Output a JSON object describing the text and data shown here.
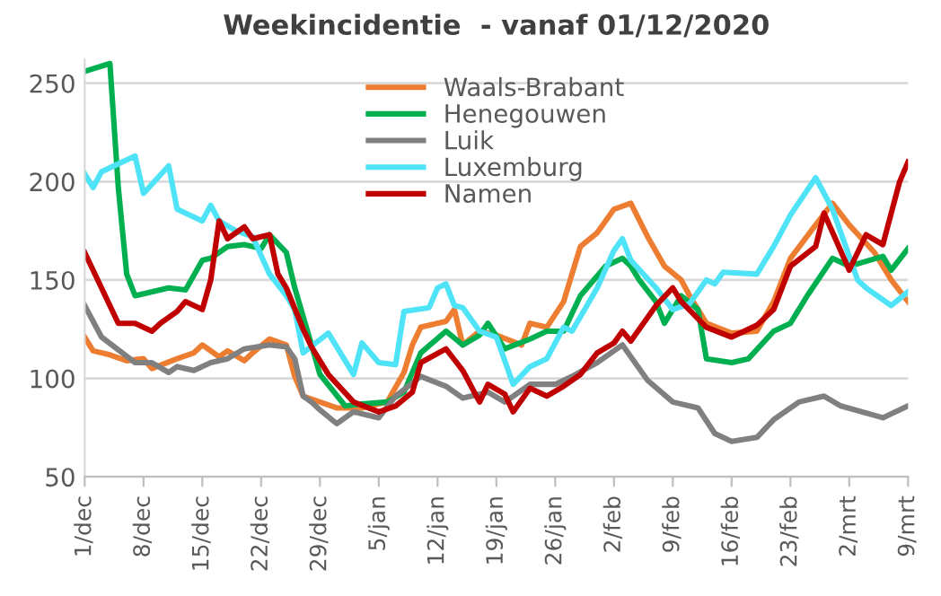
{
  "chart_data": {
    "type": "line",
    "title": "Weekincidentie  - vanaf 01/12/2020",
    "xlim": [
      "2020-12-01",
      "2021-03-09"
    ],
    "ylim": [
      50,
      262
    ],
    "yticks": [
      50,
      100,
      150,
      200,
      250
    ],
    "xticks": [
      {
        "value": "2020-12-01",
        "label": "1/dec"
      },
      {
        "value": "2020-12-08",
        "label": "8/dec"
      },
      {
        "value": "2020-12-15",
        "label": "15/dec"
      },
      {
        "value": "2020-12-22",
        "label": "22/dec"
      },
      {
        "value": "2020-12-29",
        "label": "29/dec"
      },
      {
        "value": "2021-01-05",
        "label": "5/jan"
      },
      {
        "value": "2021-01-12",
        "label": "12/jan"
      },
      {
        "value": "2021-01-19",
        "label": "19/jan"
      },
      {
        "value": "2021-01-26",
        "label": "26/jan"
      },
      {
        "value": "2021-02-02",
        "label": "2/feb"
      },
      {
        "value": "2021-02-09",
        "label": "9/feb"
      },
      {
        "value": "2021-02-16",
        "label": "16/feb"
      },
      {
        "value": "2021-02-23",
        "label": "23/feb"
      },
      {
        "value": "2021-03-02",
        "label": "2/mrt"
      },
      {
        "value": "2021-03-09",
        "label": "9/mrt"
      }
    ],
    "grid": "y",
    "legend": "top",
    "marker": "none",
    "line_style": "solid",
    "series": [
      {
        "name": "Waals-Brabant",
        "color": "#ed7d31",
        "x": [
          "2020-12-01",
          "2020-12-02",
          "2020-12-04",
          "2020-12-06",
          "2020-12-08",
          "2020-12-09",
          "2020-12-12",
          "2020-12-14",
          "2020-12-15",
          "2020-12-17",
          "2020-12-18",
          "2020-12-20",
          "2020-12-21",
          "2020-12-23",
          "2020-12-25",
          "2020-12-26",
          "2020-12-27",
          "2020-12-29",
          "2020-12-31",
          "2021-01-03",
          "2021-01-06",
          "2021-01-08",
          "2021-01-09",
          "2021-01-10",
          "2021-01-13",
          "2021-01-14",
          "2021-01-15",
          "2021-01-17",
          "2021-01-19",
          "2021-01-22",
          "2021-01-23",
          "2021-01-25",
          "2021-01-27",
          "2021-01-29",
          "2021-01-31",
          "2021-02-02",
          "2021-02-04",
          "2021-02-06",
          "2021-02-08",
          "2021-02-10",
          "2021-02-11",
          "2021-02-13",
          "2021-02-16",
          "2021-02-19",
          "2021-02-21",
          "2021-02-23",
          "2021-02-26",
          "2021-02-28",
          "2021-03-02",
          "2021-03-05",
          "2021-03-07",
          "2021-03-09"
        ],
        "values": [
          121,
          114,
          112,
          109,
          110,
          105,
          110,
          113,
          117,
          111,
          114,
          109,
          113,
          120,
          117,
          101,
          91,
          88,
          85,
          85,
          88,
          103,
          117,
          126,
          129,
          135,
          117,
          124,
          122,
          117,
          128,
          126,
          139,
          167,
          174,
          186,
          189,
          172,
          157,
          150,
          142,
          128,
          123,
          124,
          139,
          161,
          178,
          189,
          178,
          164,
          150,
          139
        ]
      },
      {
        "name": "Henegouwen",
        "color": "#00b050",
        "x": [
          "2020-12-01",
          "2020-12-04",
          "2020-12-05",
          "2020-12-06",
          "2020-12-07",
          "2020-12-11",
          "2020-12-13",
          "2020-12-15",
          "2020-12-16",
          "2020-12-18",
          "2020-12-20",
          "2020-12-22",
          "2020-12-23",
          "2020-12-25",
          "2020-12-26",
          "2020-12-28",
          "2020-12-29",
          "2021-01-01",
          "2021-01-03",
          "2021-01-06",
          "2021-01-08",
          "2021-01-10",
          "2021-01-13",
          "2021-01-15",
          "2021-01-17",
          "2021-01-18",
          "2021-01-20",
          "2021-01-23",
          "2021-01-25",
          "2021-01-27",
          "2021-01-29",
          "2021-02-01",
          "2021-02-03",
          "2021-02-04",
          "2021-02-05",
          "2021-02-07",
          "2021-02-08",
          "2021-02-10",
          "2021-02-12",
          "2021-02-13",
          "2021-02-16",
          "2021-02-18",
          "2021-02-21",
          "2021-02-23",
          "2021-02-25",
          "2021-02-28",
          "2021-03-02",
          "2021-03-06",
          "2021-03-07",
          "2021-03-09"
        ],
        "values": [
          256,
          260,
          197,
          153,
          142,
          146,
          145,
          160,
          161,
          167,
          168,
          166,
          173,
          164,
          146,
          117,
          102,
          86,
          87,
          88,
          93,
          113,
          124,
          117,
          122,
          128,
          115,
          120,
          124,
          124,
          142,
          157,
          161,
          157,
          150,
          139,
          128,
          142,
          135,
          110,
          108,
          110,
          124,
          128,
          142,
          161,
          157,
          162,
          155,
          166
        ]
      },
      {
        "name": "Luik",
        "color": "#808080",
        "x": [
          "2020-12-01",
          "2020-12-03",
          "2020-12-07",
          "2020-12-09",
          "2020-12-11",
          "2020-12-12",
          "2020-12-14",
          "2020-12-16",
          "2020-12-18",
          "2020-12-20",
          "2020-12-23",
          "2020-12-25",
          "2020-12-26",
          "2020-12-27",
          "2020-12-28",
          "2020-12-29",
          "2020-12-31",
          "2021-01-02",
          "2021-01-05",
          "2021-01-07",
          "2021-01-10",
          "2021-01-13",
          "2021-01-15",
          "2021-01-18",
          "2021-01-20",
          "2021-01-23",
          "2021-01-26",
          "2021-01-28",
          "2021-01-31",
          "2021-02-03",
          "2021-02-06",
          "2021-02-09",
          "2021-02-12",
          "2021-02-14",
          "2021-02-16",
          "2021-02-19",
          "2021-02-21",
          "2021-02-24",
          "2021-02-27",
          "2021-03-01",
          "2021-03-06",
          "2021-03-07",
          "2021-03-09"
        ],
        "values": [
          137,
          121,
          108,
          108,
          103,
          106,
          104,
          108,
          110,
          115,
          117,
          116,
          110,
          91,
          88,
          84,
          77,
          83,
          80,
          91,
          101,
          96,
          90,
          93,
          88,
          97,
          97,
          101,
          108,
          117,
          99,
          88,
          85,
          72,
          68,
          70,
          79,
          88,
          91,
          86,
          80,
          82,
          86
        ]
      },
      {
        "name": "Luxemburg",
        "color": "#4fe3f7",
        "x": [
          "2020-12-01",
          "2020-12-02",
          "2020-12-03",
          "2020-12-07",
          "2020-12-08",
          "2020-12-11",
          "2020-12-12",
          "2020-12-15",
          "2020-12-16",
          "2020-12-17",
          "2020-12-19",
          "2020-12-21",
          "2020-12-23",
          "2020-12-25",
          "2020-12-26",
          "2020-12-27",
          "2020-12-30",
          "2021-01-02",
          "2021-01-03",
          "2021-01-05",
          "2021-01-07",
          "2021-01-08",
          "2021-01-11",
          "2021-01-12",
          "2021-01-13",
          "2021-01-14",
          "2021-01-15",
          "2021-01-17",
          "2021-01-19",
          "2021-01-21",
          "2021-01-23",
          "2021-01-25",
          "2021-01-27",
          "2021-01-28",
          "2021-01-31",
          "2021-02-02",
          "2021-02-03",
          "2021-02-04",
          "2021-02-07",
          "2021-02-09",
          "2021-02-11",
          "2021-02-13",
          "2021-02-14",
          "2021-02-15",
          "2021-02-19",
          "2021-02-21",
          "2021-02-23",
          "2021-02-26",
          "2021-02-28",
          "2021-03-03",
          "2021-03-04",
          "2021-03-07",
          "2021-03-09"
        ],
        "values": [
          204,
          197,
          205,
          213,
          194,
          208,
          186,
          180,
          188,
          180,
          175,
          172,
          153,
          142,
          135,
          113,
          123,
          102,
          118,
          108,
          107,
          134,
          136,
          146,
          148,
          137,
          136,
          124,
          121,
          97,
          106,
          110,
          126,
          124,
          146,
          165,
          171,
          160,
          146,
          135,
          138,
          150,
          148,
          154,
          153,
          167,
          183,
          202,
          186,
          150,
          146,
          137,
          144
        ]
      },
      {
        "name": "Namen",
        "color": "#c00000",
        "x": [
          "2020-12-01",
          "2020-12-03",
          "2020-12-05",
          "2020-12-07",
          "2020-12-09",
          "2020-12-10",
          "2020-12-12",
          "2020-12-13",
          "2020-12-15",
          "2020-12-16",
          "2020-12-17",
          "2020-12-18",
          "2020-12-20",
          "2020-12-21",
          "2020-12-23",
          "2020-12-24",
          "2020-12-25",
          "2020-12-27",
          "2020-12-28",
          "2020-12-30",
          "2021-01-02",
          "2021-01-05",
          "2021-01-07",
          "2021-01-09",
          "2021-01-10",
          "2021-01-13",
          "2021-01-15",
          "2021-01-17",
          "2021-01-18",
          "2021-01-20",
          "2021-01-21",
          "2021-01-23",
          "2021-01-25",
          "2021-01-27",
          "2021-01-29",
          "2021-01-31",
          "2021-02-02",
          "2021-02-03",
          "2021-02-04",
          "2021-02-07",
          "2021-02-09",
          "2021-02-10",
          "2021-02-13",
          "2021-02-16",
          "2021-02-19",
          "2021-02-21",
          "2021-02-23",
          "2021-02-26",
          "2021-02-27",
          "2021-03-02",
          "2021-03-04",
          "2021-03-06",
          "2021-03-08",
          "2021-03-09"
        ],
        "values": [
          164,
          146,
          128,
          128,
          124,
          128,
          134,
          139,
          135,
          150,
          180,
          171,
          177,
          171,
          173,
          153,
          146,
          125,
          116,
          102,
          88,
          83,
          86,
          93,
          108,
          115,
          104,
          88,
          97,
          92,
          83,
          95,
          91,
          96,
          102,
          113,
          118,
          124,
          119,
          137,
          146,
          139,
          126,
          121,
          127,
          135,
          157,
          167,
          184,
          155,
          173,
          168,
          200,
          210
        ]
      }
    ]
  }
}
